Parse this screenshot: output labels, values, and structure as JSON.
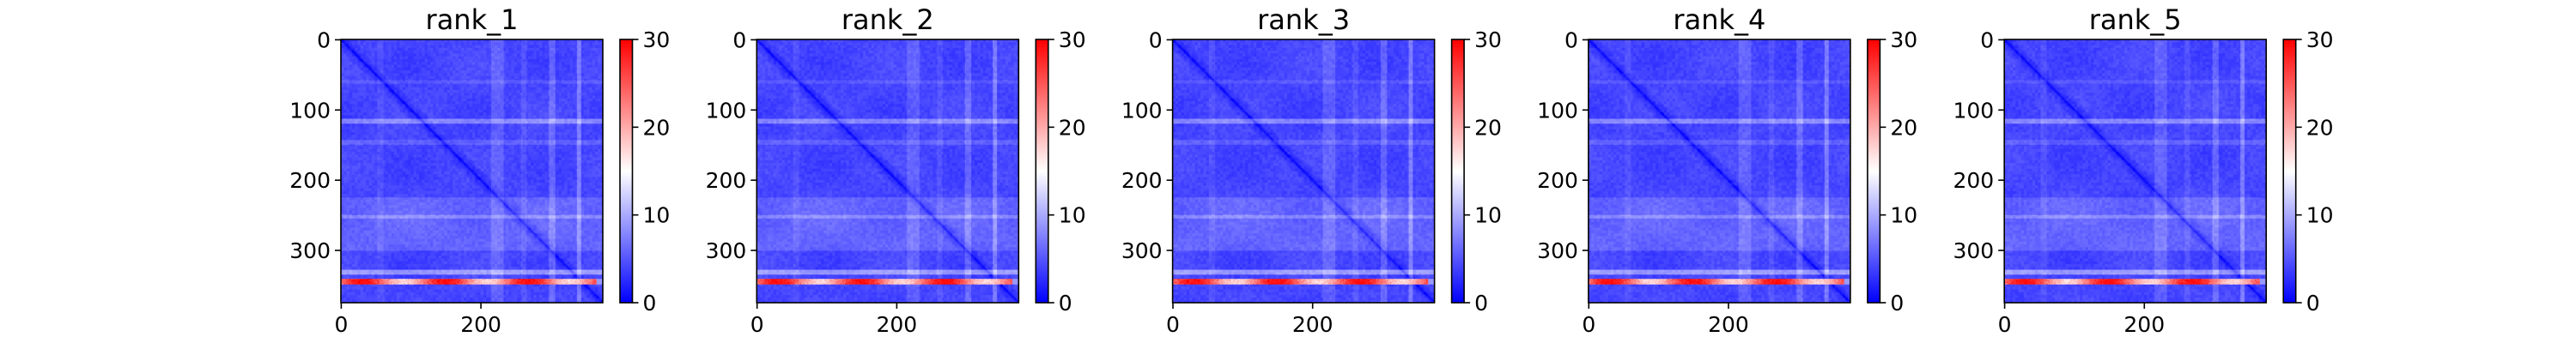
{
  "chart_data": [
    {
      "type": "heatmap",
      "title": "rank_1",
      "xlabel": "",
      "ylabel": "",
      "size": 375,
      "xticks": [
        0,
        200
      ],
      "yticks": [
        0,
        100,
        200,
        300
      ],
      "colorbar": {
        "min": 0,
        "max": 30,
        "ticks": [
          0,
          10,
          20,
          30
        ],
        "colormap": "bwr"
      },
      "grid": false
    },
    {
      "type": "heatmap",
      "title": "rank_2",
      "xlabel": "",
      "ylabel": "",
      "size": 375,
      "xticks": [
        0,
        200
      ],
      "yticks": [
        0,
        100,
        200,
        300
      ],
      "colorbar": {
        "min": 0,
        "max": 30,
        "ticks": [
          0,
          10,
          20,
          30
        ],
        "colormap": "bwr"
      },
      "grid": false
    },
    {
      "type": "heatmap",
      "title": "rank_3",
      "xlabel": "",
      "ylabel": "",
      "size": 375,
      "xticks": [
        0,
        200
      ],
      "yticks": [
        0,
        100,
        200,
        300
      ],
      "colorbar": {
        "min": 0,
        "max": 30,
        "ticks": [
          0,
          10,
          20,
          30
        ],
        "colormap": "bwr"
      },
      "grid": false
    },
    {
      "type": "heatmap",
      "title": "rank_4",
      "xlabel": "",
      "ylabel": "",
      "size": 375,
      "xticks": [
        0,
        200
      ],
      "yticks": [
        0,
        100,
        200,
        300
      ],
      "colorbar": {
        "min": 0,
        "max": 30,
        "ticks": [
          0,
          10,
          20,
          30
        ],
        "colormap": "bwr"
      },
      "grid": false
    },
    {
      "type": "heatmap",
      "title": "rank_5",
      "xlabel": "",
      "ylabel": "",
      "size": 375,
      "xticks": [
        0,
        200
      ],
      "yticks": [
        0,
        100,
        200,
        300
      ],
      "colorbar": {
        "min": 0,
        "max": 30,
        "ticks": [
          0,
          10,
          20,
          30
        ],
        "colormap": "bwr"
      },
      "grid": false
    }
  ],
  "colors": {
    "low": "#0000ff",
    "mid": "#ffffff",
    "high": "#ff0000"
  }
}
